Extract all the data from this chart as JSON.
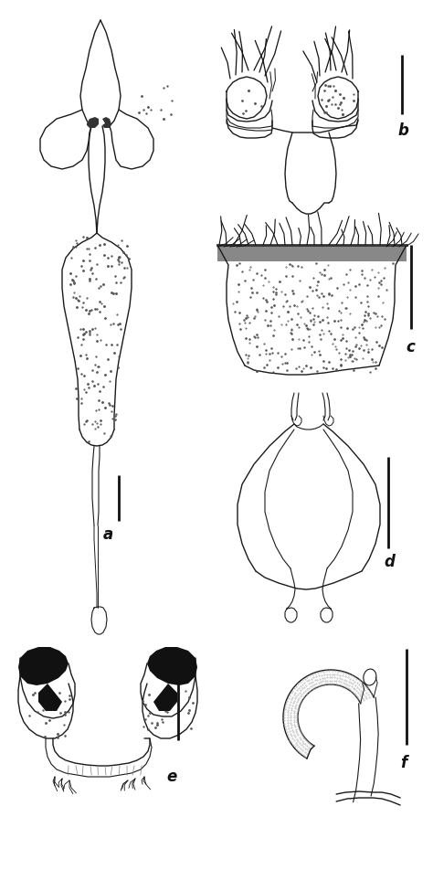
{
  "bg_color": "#ffffff",
  "line_color": "#1a1a1a",
  "dark_color": "#111111",
  "label_a": "a",
  "label_b": "b",
  "label_c": "c",
  "label_d": "d",
  "label_e": "e",
  "label_f": "f",
  "label_fontsize": 12,
  "fig_width": 4.74,
  "fig_height": 9.75,
  "dpi": 100
}
